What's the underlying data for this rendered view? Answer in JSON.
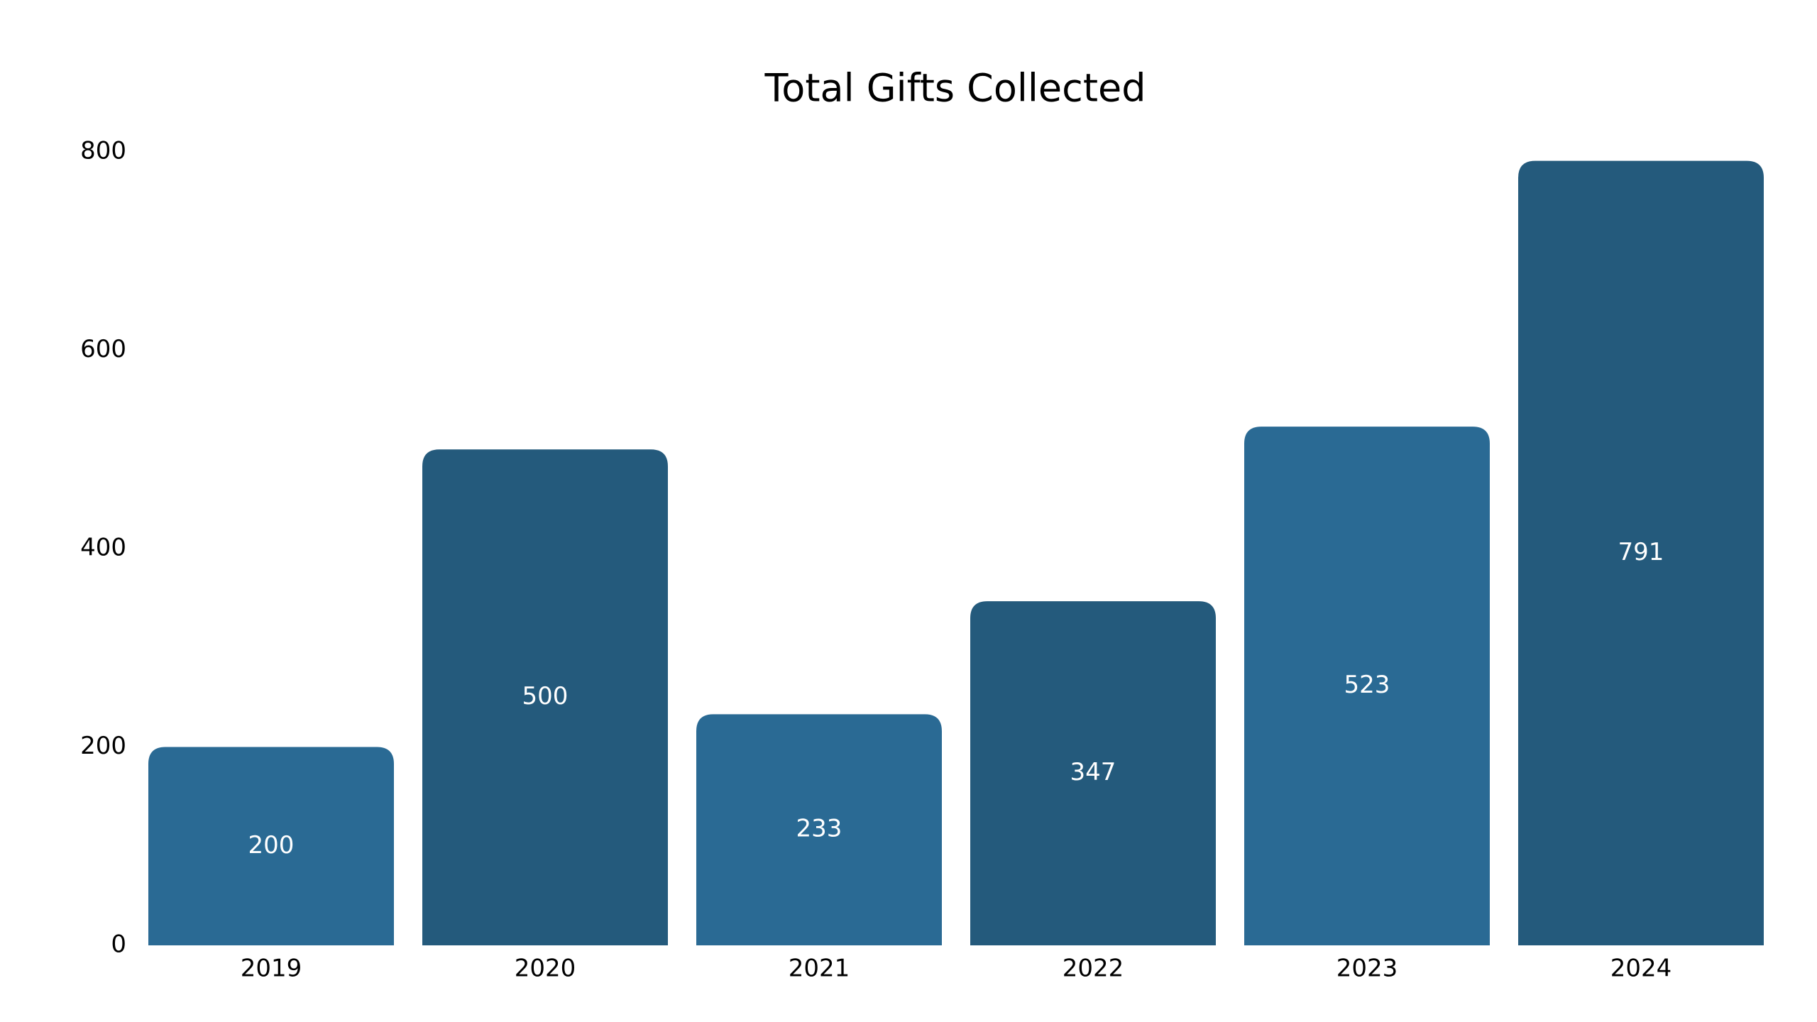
{
  "chart_data": {
    "type": "bar",
    "title": "Total Gifts Collected",
    "categories": [
      "2019",
      "2020",
      "2021",
      "2022",
      "2023",
      "2024"
    ],
    "values": [
      200,
      500,
      233,
      347,
      523,
      791
    ],
    "colors": [
      "#2a6a94",
      "#245a7c",
      "#2a6a94",
      "#245a7c",
      "#2a6a94",
      "#245a7c"
    ],
    "ylim": [
      0,
      800
    ],
    "yticks": [
      0,
      200,
      400,
      600,
      800
    ],
    "grid": false
  }
}
